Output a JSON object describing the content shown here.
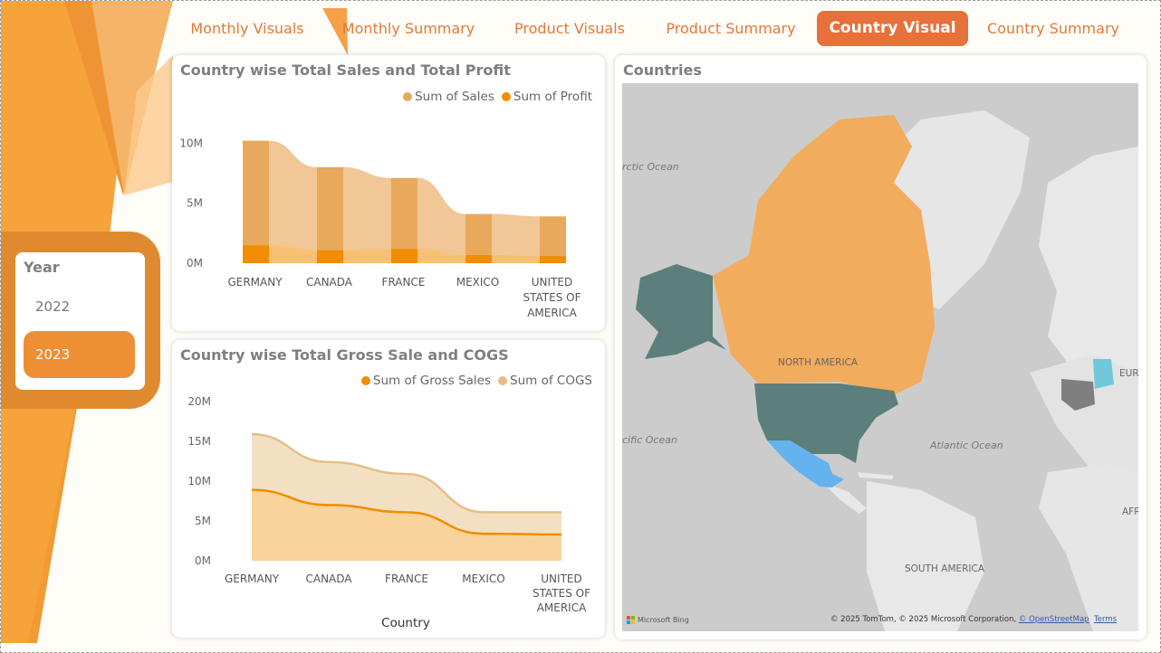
{
  "nav": {
    "tabs": [
      {
        "label": "Monthly Visuals",
        "active": false
      },
      {
        "label": "Monthly Summary",
        "active": false
      },
      {
        "label": "Product Visuals",
        "active": false
      },
      {
        "label": "Product Summary",
        "active": false
      },
      {
        "label": "Country Visual",
        "active": true
      },
      {
        "label": "Country Summary",
        "active": false
      }
    ]
  },
  "slicer": {
    "title": "Year",
    "items": [
      {
        "label": "2022",
        "selected": false
      },
      {
        "label": "2023",
        "selected": true
      }
    ]
  },
  "colors": {
    "accent": "#e8703a",
    "sales": "#e8a95c",
    "profit": "#f28c00",
    "gross_sales": "#f28c00",
    "cogs": "#e5bf85",
    "map_orange": "#f2ac5e",
    "map_teal": "#5c7f7c",
    "map_blue": "#64b2ee"
  },
  "chart1": {
    "title": "Country wise Total Sales and Total Profit",
    "legend": [
      "Sum of  Sales",
      "Sum of Profit"
    ]
  },
  "chart2": {
    "title": "Country wise Total Gross Sale and COGS",
    "legend": [
      "Sum of Gross Sales",
      "Sum of COGS"
    ],
    "xlabel": "Country"
  },
  "chart_data": [
    {
      "type": "bar",
      "title": "Country wise Total Sales and Total Profit",
      "categories": [
        "GERMANY",
        "CANADA",
        "FRANCE",
        "MEXICO",
        "UNITED STATES OF AMERICA"
      ],
      "category_lines": [
        [
          "GERMANY"
        ],
        [
          "CANADA"
        ],
        [
          "FRANCE"
        ],
        [
          "MEXICO"
        ],
        [
          "UNITED",
          "STATES OF",
          "AMERICA"
        ]
      ],
      "series": [
        {
          "name": "Sum of  Sales",
          "values": [
            10.2,
            8.0,
            7.1,
            4.1,
            3.9
          ]
        },
        {
          "name": "Sum of Profit",
          "values": [
            1.5,
            1.1,
            1.2,
            0.7,
            0.6
          ]
        }
      ],
      "yticks": [
        "0M",
        "5M",
        "10M"
      ],
      "ylim": [
        0,
        11
      ],
      "ylabel": "",
      "legend_position": "top-right"
    },
    {
      "type": "area",
      "title": "Country wise Total Gross Sale and COGS",
      "categories": [
        "GERMANY",
        "CANADA",
        "FRANCE",
        "MEXICO",
        "UNITED STATES OF AMERICA"
      ],
      "category_lines": [
        [
          "GERMANY"
        ],
        [
          "CANADA"
        ],
        [
          "FRANCE"
        ],
        [
          "MEXICO"
        ],
        [
          "UNITED",
          "STATES OF",
          "AMERICA"
        ]
      ],
      "series": [
        {
          "name": "Sum of Gross Sales",
          "values": [
            8.9,
            7.0,
            6.1,
            3.4,
            3.3
          ]
        },
        {
          "name": "Sum of COGS",
          "values": [
            15.9,
            12.4,
            10.9,
            6.1,
            6.1
          ]
        }
      ],
      "yticks": [
        "0M",
        "5M",
        "10M",
        "15M",
        "20M"
      ],
      "ylim": [
        0,
        20
      ],
      "xlabel": "Country",
      "legend_position": "top-right"
    }
  ],
  "map": {
    "title": "Countries",
    "labels": {
      "arctic": "rctic Ocean",
      "pacific": "cific Ocean",
      "atlantic": "Atlantic Ocean",
      "north_america": "NORTH AMERICA",
      "south_america": "SOUTH AMERICA",
      "europe": "EUR",
      "africa": "AFR"
    },
    "attribution_prefix": "© 2025 TomTom, © 2025 Microsoft Corporation,",
    "attribution_osm": "© OpenStreetMap",
    "attribution_terms": "Terms",
    "provider": "Microsoft Bing"
  }
}
